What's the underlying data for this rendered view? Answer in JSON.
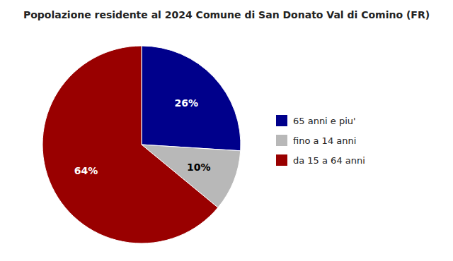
{
  "chart_data": {
    "type": "pie",
    "title": "Popolazione residente al 2024 Comune di San Donato Val di Comino (FR)",
    "categories": [
      "65 anni e piu'",
      "fino a 14 anni",
      "da 15 a 64 anni"
    ],
    "values": [
      26,
      10,
      64
    ],
    "value_labels": [
      "26%",
      "10%",
      "64%"
    ],
    "colors": [
      "#00008B",
      "#B8B8B8",
      "#990000"
    ],
    "data_labels": true,
    "legend": "right"
  }
}
